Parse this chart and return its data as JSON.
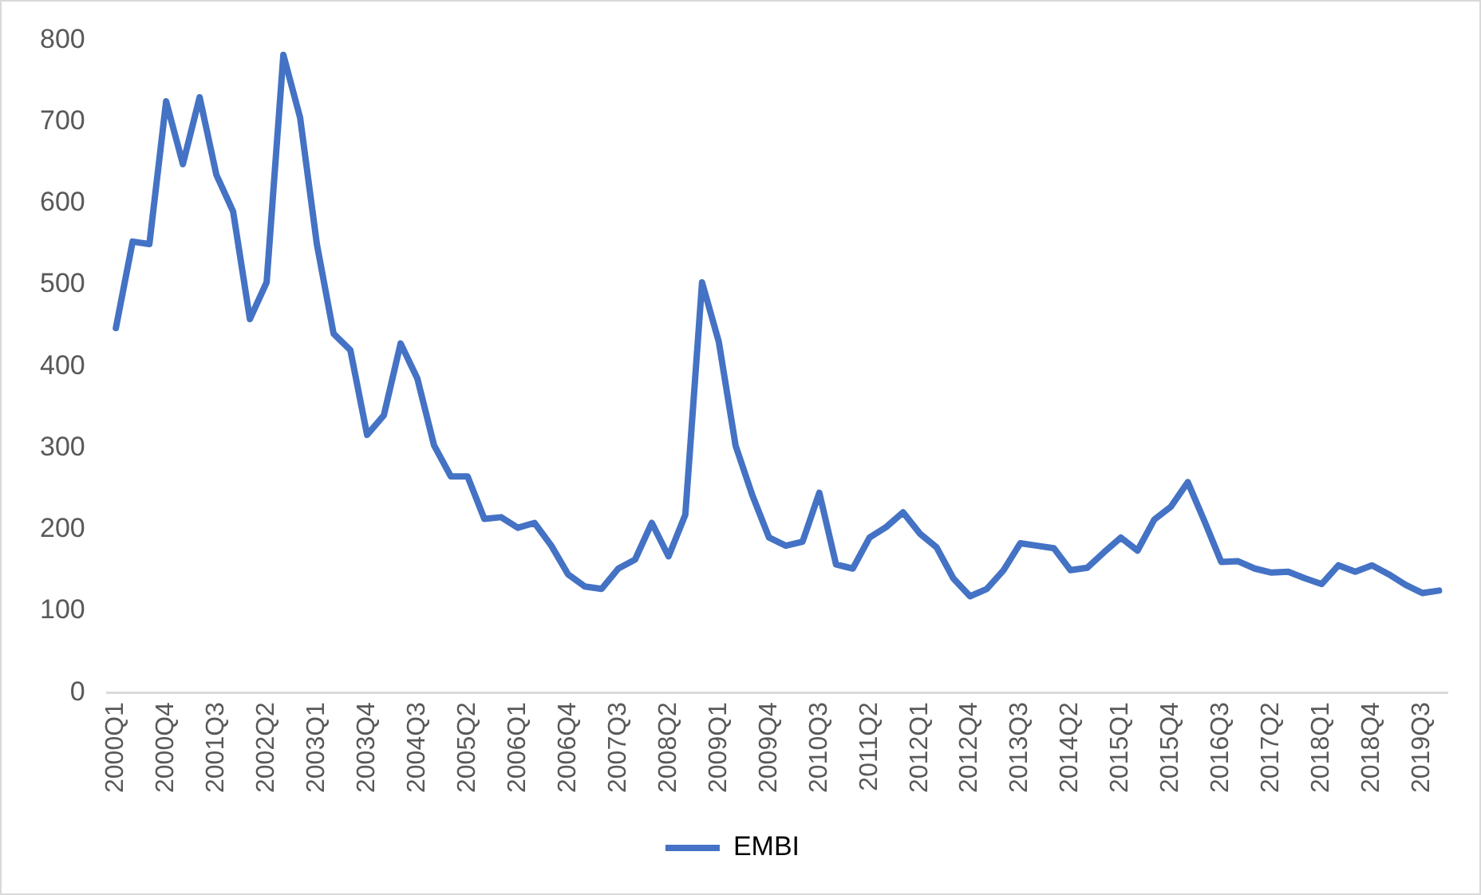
{
  "chart_data": {
    "type": "line",
    "categories": [
      "2000Q1",
      null,
      null,
      "2000Q4",
      null,
      null,
      "2001Q3",
      null,
      null,
      "2002Q2",
      null,
      null,
      "2003Q1",
      null,
      null,
      "2003Q4",
      null,
      null,
      "2004Q3",
      null,
      null,
      "2005Q2",
      null,
      null,
      "2006Q1",
      null,
      null,
      "2006Q4",
      null,
      null,
      "2007Q3",
      null,
      null,
      "2008Q2",
      null,
      null,
      "2009Q1",
      null,
      null,
      "2009Q4",
      null,
      null,
      "2010Q3",
      null,
      null,
      "2011Q2",
      null,
      null,
      "2012Q1",
      null,
      null,
      "2012Q4",
      null,
      null,
      "2013Q3",
      null,
      null,
      "2014Q2",
      null,
      null,
      "2015Q1",
      null,
      null,
      "2015Q4",
      null,
      null,
      "2016Q3",
      null,
      null,
      "2017Q2",
      null,
      null,
      "2018Q1",
      null,
      null,
      "2018Q4",
      null,
      null,
      "2019Q3",
      null
    ],
    "series": [
      {
        "name": "EMBI",
        "color": "#4472c4",
        "values": [
          447,
          553,
          550,
          725,
          648,
          730,
          635,
          590,
          458,
          503,
          782,
          705,
          550,
          440,
          420,
          316,
          340,
          428,
          385,
          303,
          265,
          265,
          213,
          215,
          202,
          208,
          180,
          145,
          130,
          127,
          152,
          163,
          208,
          167,
          218,
          503,
          430,
          303,
          242,
          190,
          180,
          185,
          245,
          157,
          152,
          190,
          203,
          221,
          195,
          178,
          140,
          118,
          127,
          150,
          183,
          180,
          177,
          150,
          153,
          172,
          190,
          174,
          212,
          228,
          258,
          210,
          160,
          161,
          152,
          147,
          148,
          140,
          133,
          156,
          148,
          156,
          145,
          132,
          122,
          125
        ]
      }
    ],
    "ylim": [
      0,
      800
    ],
    "yticks": [
      0,
      100,
      200,
      300,
      400,
      500,
      600,
      700,
      800
    ],
    "grid": false,
    "legend": "bottom",
    "marker": "none",
    "line_style": "solid"
  }
}
